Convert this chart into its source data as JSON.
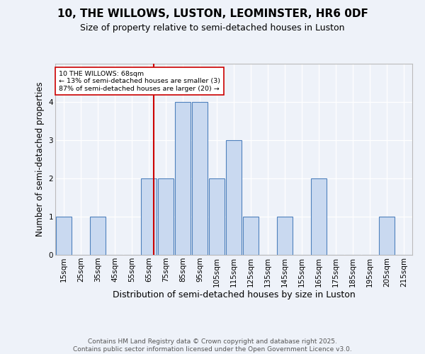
{
  "title": "10, THE WILLOWS, LUSTON, LEOMINSTER, HR6 0DF",
  "subtitle": "Size of property relative to semi-detached houses in Luston",
  "xlabel": "Distribution of semi-detached houses by size in Luston",
  "ylabel": "Number of semi-detached properties",
  "bin_labels": [
    "15sqm",
    "25sqm",
    "35sqm",
    "45sqm",
    "55sqm",
    "65sqm",
    "75sqm",
    "85sqm",
    "95sqm",
    "105sqm",
    "115sqm",
    "125sqm",
    "135sqm",
    "145sqm",
    "155sqm",
    "165sqm",
    "175sqm",
    "185sqm",
    "195sqm",
    "205sqm",
    "215sqm"
  ],
  "bin_centers": [
    15,
    25,
    35,
    45,
    55,
    65,
    75,
    85,
    95,
    105,
    115,
    125,
    135,
    145,
    155,
    165,
    175,
    185,
    195,
    205,
    215
  ],
  "bin_width": 10,
  "counts": [
    1,
    0,
    1,
    0,
    0,
    2,
    2,
    4,
    4,
    2,
    3,
    1,
    0,
    1,
    0,
    2,
    0,
    0,
    0,
    1,
    0
  ],
  "bar_color": "#c9d9f0",
  "bar_edge_color": "#4f81bd",
  "vline_x": 68,
  "vline_color": "#cc0000",
  "annotation_text": "10 THE WILLOWS: 68sqm\n← 13% of semi-detached houses are smaller (3)\n87% of semi-detached houses are larger (20) →",
  "annotation_box_color": "#ffffff",
  "annotation_box_edge": "#cc0000",
  "ylim": [
    0,
    5
  ],
  "yticks": [
    0,
    1,
    2,
    3,
    4
  ],
  "xlim": [
    10,
    220
  ],
  "background_color": "#eef2f9",
  "footer": "Contains HM Land Registry data © Crown copyright and database right 2025.\nContains public sector information licensed under the Open Government Licence v3.0.",
  "title_fontsize": 11,
  "subtitle_fontsize": 9,
  "xlabel_fontsize": 9,
  "ylabel_fontsize": 8.5,
  "tick_fontsize": 7.5,
  "footer_fontsize": 6.5
}
